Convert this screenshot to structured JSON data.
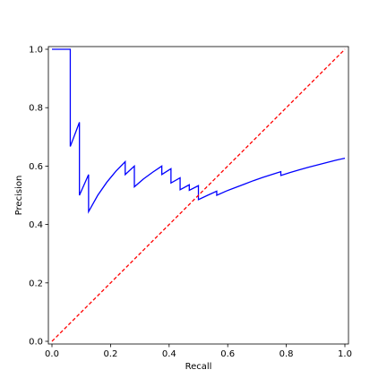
{
  "chart_data": {
    "type": "line",
    "title": "",
    "xlabel": "Recall",
    "ylabel": "Precision",
    "xlim": [
      0.0,
      1.0
    ],
    "ylim": [
      0.0,
      1.0
    ],
    "xticks": [
      "0.0",
      "0.2",
      "0.4",
      "0.6",
      "0.8",
      "1.0"
    ],
    "yticks": [
      "0.0",
      "0.2",
      "0.4",
      "0.6",
      "0.8",
      "1.0"
    ],
    "grid": false,
    "legend": "none",
    "series": [
      {
        "color": "#0000ff",
        "style": "solid",
        "x": [
          0.0,
          0.0625,
          0.0625,
          0.0938,
          0.0938,
          0.125,
          0.125,
          0.1563,
          0.1875,
          0.2188,
          0.25,
          0.25,
          0.2813,
          0.2813,
          0.3125,
          0.3438,
          0.375,
          0.375,
          0.4063,
          0.4063,
          0.4375,
          0.4375,
          0.4688,
          0.4688,
          0.5,
          0.5,
          0.5313,
          0.5625,
          0.5625,
          0.5938,
          0.625,
          0.6563,
          0.6875,
          0.7188,
          0.75,
          0.7813,
          0.7813,
          0.8125,
          0.8438,
          0.875,
          0.9063,
          0.9375,
          0.9688,
          1.0
        ],
        "y": [
          1.0,
          1.0,
          0.667,
          0.75,
          0.5,
          0.571,
          0.444,
          0.5,
          0.545,
          0.583,
          0.615,
          0.571,
          0.6,
          0.529,
          0.556,
          0.579,
          0.6,
          0.571,
          0.591,
          0.542,
          0.56,
          0.519,
          0.536,
          0.517,
          0.533,
          0.485,
          0.5,
          0.514,
          0.5,
          0.514,
          0.526,
          0.538,
          0.55,
          0.561,
          0.571,
          0.581,
          0.568,
          0.578,
          0.587,
          0.596,
          0.604,
          0.612,
          0.62,
          0.627
        ]
      },
      {
        "color": "#ff0000",
        "style": "dashed",
        "x": [
          0.0,
          1.0
        ],
        "y": [
          0.0,
          1.0
        ]
      }
    ]
  }
}
